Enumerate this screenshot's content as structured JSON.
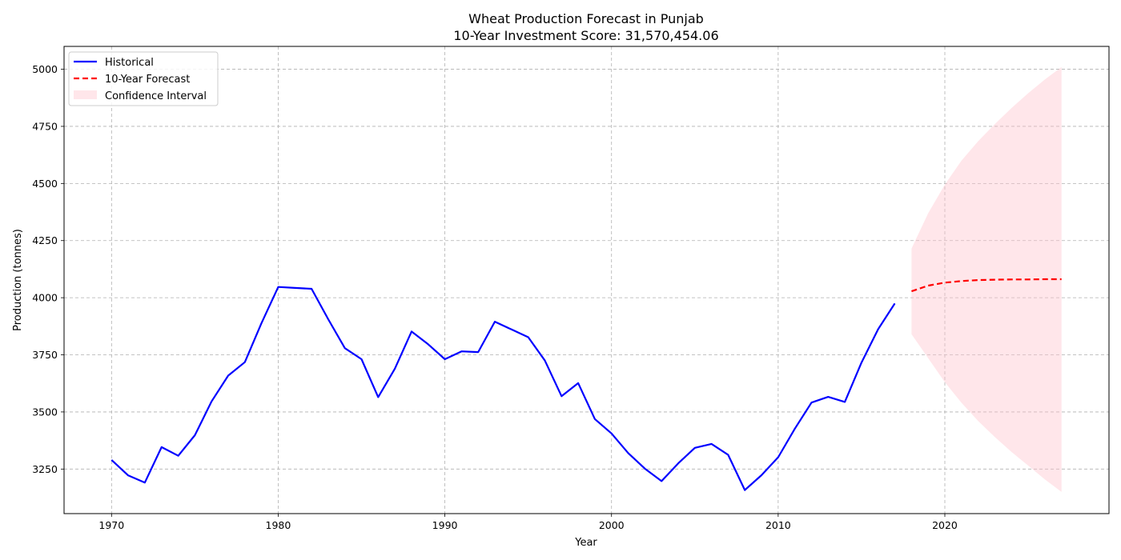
{
  "chart_data": {
    "type": "line",
    "title": "Wheat Production Forecast in Punjab",
    "subtitle": "10-Year Investment Score: 31,570,454.06",
    "xlabel": "Year",
    "ylabel": "Production (tonnes)",
    "xlim": [
      1967.15,
      2029.85
    ],
    "ylim": [
      3055,
      5100
    ],
    "xticks": [
      1970,
      1980,
      1990,
      2000,
      2010,
      2020
    ],
    "yticks": [
      3250,
      3500,
      3750,
      4000,
      4250,
      4500,
      4750,
      5000
    ],
    "grid": true,
    "legend_position": "upper left",
    "series": [
      {
        "name": "Historical",
        "color": "#0000ff",
        "style": "solid",
        "x": [
          1970,
          1971,
          1972,
          1973,
          1974,
          1975,
          1976,
          1977,
          1978,
          1979,
          1980,
          1981,
          1982,
          1983,
          1984,
          1985,
          1986,
          1987,
          1988,
          1989,
          1990,
          1991,
          1992,
          1993,
          1994,
          1995,
          1996,
          1997,
          1998,
          1999,
          2000,
          2001,
          2002,
          2003,
          2004,
          2005,
          2006,
          2007,
          2008,
          2009,
          2010,
          2011,
          2012,
          2013,
          2014,
          2015,
          2016,
          2017
        ],
        "values": [
          3290,
          3222,
          3191,
          3346,
          3308,
          3398,
          3546,
          3659,
          3718,
          3889,
          4047,
          4043,
          4039,
          3906,
          3779,
          3731,
          3565,
          3689,
          3852,
          3796,
          3731,
          3765,
          3762,
          3895,
          3861,
          3827,
          3725,
          3569,
          3626,
          3469,
          3406,
          3320,
          3252,
          3197,
          3275,
          3343,
          3360,
          3312,
          3158,
          3223,
          3302,
          3427,
          3541,
          3566,
          3544,
          3716,
          3862,
          3975
        ]
      },
      {
        "name": "10-Year Forecast",
        "color": "#ff0000",
        "style": "dashed",
        "x": [
          2018,
          2019,
          2020,
          2021,
          2022,
          2023,
          2024,
          2025,
          2026,
          2027
        ],
        "values": [
          4028,
          4053,
          4066,
          4073,
          4077,
          4079,
          4080,
          4080,
          4081,
          4081
        ]
      }
    ],
    "confidence_interval": {
      "name": "Confidence Interval",
      "color": "#ffc0cb",
      "x": [
        2018,
        2019,
        2020,
        2021,
        2022,
        2023,
        2024,
        2025,
        2026,
        2027
      ],
      "upper": [
        4215,
        4370,
        4495,
        4600,
        4685,
        4760,
        4830,
        4895,
        4955,
        5010
      ],
      "lower": [
        3840,
        3735,
        3630,
        3540,
        3460,
        3390,
        3325,
        3265,
        3205,
        3150
      ]
    }
  }
}
